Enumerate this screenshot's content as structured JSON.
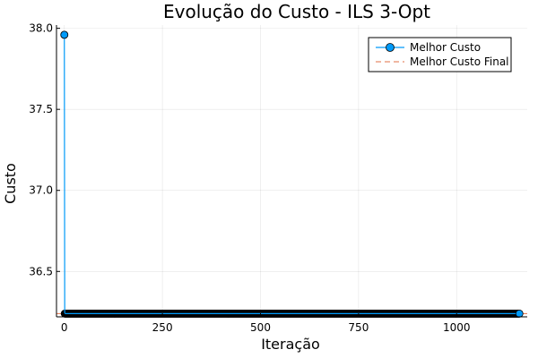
{
  "chart_data": {
    "type": "line",
    "title": "Evolução do Custo - ILS 3-Opt",
    "xlabel": "Iteração",
    "ylabel": "Custo",
    "xlim": [
      -20,
      1180
    ],
    "ylim": [
      36.22,
      38.02
    ],
    "xticks": [
      0,
      250,
      500,
      750,
      1000
    ],
    "xtick_labels": [
      "0",
      "250",
      "500",
      "750",
      "1000"
    ],
    "yticks": [
      36.5,
      37.0,
      37.5,
      38.0
    ],
    "ytick_labels": [
      "36.5",
      "37.0",
      "37.5",
      "38.0"
    ],
    "grid": true,
    "legend_position": "top-right",
    "series": [
      {
        "name": "Melhor Custo",
        "color": "#009af9",
        "marker": "circle",
        "initial_value": 37.96,
        "x_range": [
          0,
          1160
        ],
        "final_value": 36.24
      },
      {
        "name": "Melhor Custo Final",
        "color": "#e26f46",
        "style": "dashed",
        "value": 36.24
      }
    ]
  }
}
